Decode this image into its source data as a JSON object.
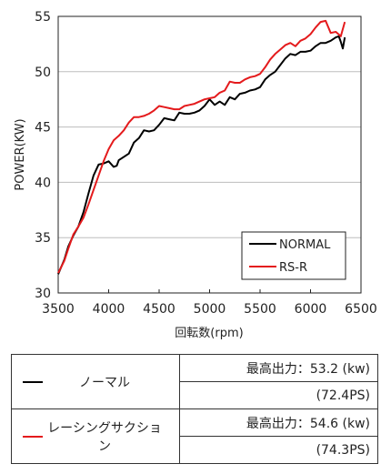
{
  "chart_data": {
    "type": "line",
    "xlabel": "回転数(rpm)",
    "ylabel": "POWER(KW)",
    "xlim": [
      3500,
      6500
    ],
    "ylim": [
      30,
      55
    ],
    "xticks": [
      "3500",
      "4000",
      "4500",
      "5000",
      "5500",
      "6000",
      "6500"
    ],
    "yticks": [
      "30",
      "35",
      "40",
      "45",
      "50",
      "55"
    ],
    "grid": "horizontal",
    "legend_position": "bottom-right",
    "series": [
      {
        "name": "NORMAL",
        "color": "#000000",
        "x": [
          3500,
          3560,
          3600,
          3650,
          3700,
          3750,
          3800,
          3850,
          3900,
          3950,
          4000,
          4050,
          4080,
          4100,
          4150,
          4200,
          4250,
          4300,
          4350,
          4400,
          4450,
          4500,
          4550,
          4600,
          4650,
          4700,
          4750,
          4800,
          4850,
          4900,
          4950,
          5000,
          5050,
          5100,
          5150,
          5200,
          5250,
          5300,
          5350,
          5400,
          5450,
          5500,
          5550,
          5600,
          5650,
          5700,
          5750,
          5800,
          5850,
          5900,
          5950,
          6000,
          6050,
          6100,
          6150,
          6200,
          6250,
          6280,
          6300,
          6320,
          6340
        ],
        "values": [
          31.7,
          33.0,
          34.2,
          35.2,
          36.0,
          37.3,
          39.0,
          40.6,
          41.6,
          41.7,
          41.9,
          41.4,
          41.5,
          42.0,
          42.3,
          42.6,
          43.6,
          44.0,
          44.7,
          44.6,
          44.7,
          45.2,
          45.8,
          45.7,
          45.6,
          46.3,
          46.2,
          46.2,
          46.3,
          46.5,
          46.9,
          47.5,
          47.0,
          47.3,
          47.0,
          47.7,
          47.5,
          48.0,
          48.1,
          48.3,
          48.4,
          48.6,
          49.3,
          49.7,
          50.0,
          50.6,
          51.2,
          51.6,
          51.5,
          51.8,
          51.8,
          51.9,
          52.3,
          52.6,
          52.6,
          52.8,
          53.1,
          53.2,
          52.7,
          52.1,
          53.1
        ]
      },
      {
        "name": "RS-R",
        "color": "#e41a1c",
        "x": [
          3500,
          3560,
          3600,
          3650,
          3700,
          3750,
          3800,
          3850,
          3900,
          3950,
          4000,
          4050,
          4100,
          4150,
          4200,
          4250,
          4300,
          4350,
          4400,
          4450,
          4500,
          4550,
          4600,
          4650,
          4700,
          4750,
          4800,
          4850,
          4900,
          4950,
          5000,
          5050,
          5100,
          5150,
          5200,
          5250,
          5300,
          5350,
          5400,
          5450,
          5500,
          5550,
          5600,
          5650,
          5700,
          5750,
          5800,
          5850,
          5900,
          5950,
          6000,
          6050,
          6100,
          6150,
          6200,
          6250,
          6300,
          6340
        ],
        "values": [
          31.8,
          32.9,
          34.0,
          35.3,
          36.0,
          36.8,
          38.0,
          39.3,
          40.6,
          41.9,
          43.0,
          43.8,
          44.2,
          44.7,
          45.4,
          45.9,
          45.9,
          46.0,
          46.2,
          46.5,
          46.9,
          46.8,
          46.7,
          46.6,
          46.6,
          46.9,
          47.0,
          47.1,
          47.3,
          47.5,
          47.6,
          47.7,
          48.1,
          48.3,
          49.1,
          49.0,
          49.0,
          49.3,
          49.5,
          49.6,
          49.8,
          50.4,
          51.1,
          51.6,
          52.0,
          52.4,
          52.6,
          52.3,
          52.8,
          53.0,
          53.4,
          54.0,
          54.5,
          54.6,
          53.5,
          53.6,
          53.2,
          54.5
        ]
      }
    ]
  },
  "table": {
    "rows": [
      {
        "name": "ノーマル",
        "color": "#000000",
        "max_power": "最高出力：53.2 (kw)",
        "ps": "(72.4PS)"
      },
      {
        "name": "レーシングサクション",
        "color": "#e41a1c",
        "max_power": "最高出力：54.6 (kw)",
        "ps": "(74.3PS)"
      }
    ]
  }
}
